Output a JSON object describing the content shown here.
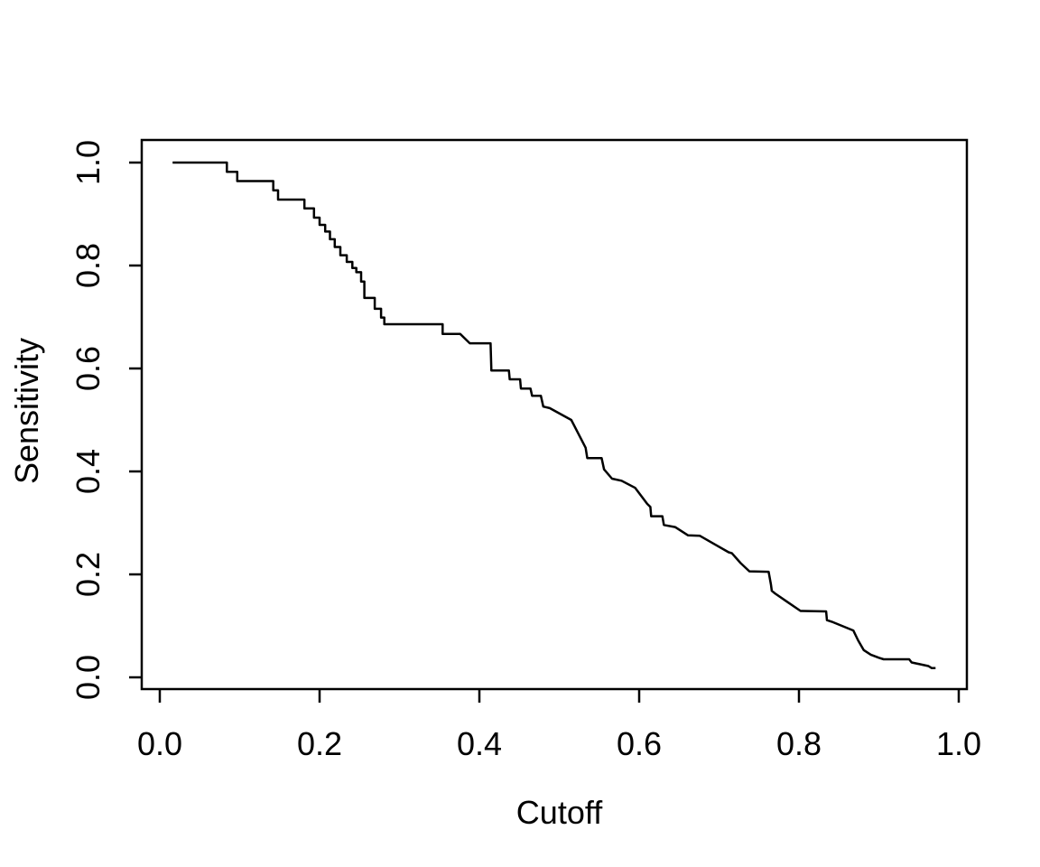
{
  "figure": {
    "background": "#FFFFFF",
    "foreground": "#000000"
  },
  "chart_data": {
    "type": "line",
    "subtype": "step-curve-r-base-plot",
    "title": "",
    "xlabel": "Cutoff",
    "ylabel": "Sensitivity",
    "xlim": [
      0.0,
      1.0
    ],
    "ylim": [
      0.0,
      1.0
    ],
    "grid": false,
    "legend_position": "none",
    "x_ticks": {
      "values": [
        0.0,
        0.2,
        0.4,
        0.6,
        0.8,
        1.0
      ],
      "labels": [
        "0.0",
        "0.2",
        "0.4",
        "0.6",
        "0.8",
        "1.0"
      ]
    },
    "y_ticks": {
      "values": [
        0.0,
        0.2,
        0.4,
        0.6,
        0.8,
        1.0
      ],
      "labels": [
        "0.0",
        "0.2",
        "0.4",
        "0.6",
        "0.8",
        "1.0"
      ]
    },
    "series": [
      {
        "name": "sensitivity-vs-cutoff",
        "color": "#000000",
        "line_width": 2.5,
        "points": [
          [
            0.016,
            1.0
          ],
          [
            0.084,
            1.0
          ],
          [
            0.084,
            0.982
          ],
          [
            0.097,
            0.982
          ],
          [
            0.097,
            0.964
          ],
          [
            0.142,
            0.964
          ],
          [
            0.142,
            0.946
          ],
          [
            0.148,
            0.946
          ],
          [
            0.148,
            0.928
          ],
          [
            0.181,
            0.928
          ],
          [
            0.181,
            0.911
          ],
          [
            0.193,
            0.911
          ],
          [
            0.193,
            0.893
          ],
          [
            0.2,
            0.893
          ],
          [
            0.2,
            0.879
          ],
          [
            0.207,
            0.879
          ],
          [
            0.207,
            0.866
          ],
          [
            0.213,
            0.866
          ],
          [
            0.213,
            0.851
          ],
          [
            0.219,
            0.851
          ],
          [
            0.219,
            0.836
          ],
          [
            0.226,
            0.836
          ],
          [
            0.226,
            0.82
          ],
          [
            0.234,
            0.82
          ],
          [
            0.234,
            0.807
          ],
          [
            0.241,
            0.807
          ],
          [
            0.241,
            0.795
          ],
          [
            0.246,
            0.795
          ],
          [
            0.246,
            0.787
          ],
          [
            0.252,
            0.787
          ],
          [
            0.252,
            0.769
          ],
          [
            0.256,
            0.769
          ],
          [
            0.256,
            0.737
          ],
          [
            0.269,
            0.737
          ],
          [
            0.269,
            0.716
          ],
          [
            0.277,
            0.716
          ],
          [
            0.277,
            0.699
          ],
          [
            0.281,
            0.699
          ],
          [
            0.281,
            0.686
          ],
          [
            0.354,
            0.686
          ],
          [
            0.354,
            0.667
          ],
          [
            0.376,
            0.667
          ],
          [
            0.388,
            0.649
          ],
          [
            0.414,
            0.649
          ],
          [
            0.415,
            0.596
          ],
          [
            0.437,
            0.596
          ],
          [
            0.438,
            0.579
          ],
          [
            0.451,
            0.579
          ],
          [
            0.452,
            0.561
          ],
          [
            0.464,
            0.561
          ],
          [
            0.466,
            0.547
          ],
          [
            0.477,
            0.547
          ],
          [
            0.48,
            0.526
          ],
          [
            0.488,
            0.523
          ],
          [
            0.515,
            0.5
          ],
          [
            0.533,
            0.446
          ],
          [
            0.535,
            0.426
          ],
          [
            0.553,
            0.426
          ],
          [
            0.556,
            0.404
          ],
          [
            0.566,
            0.386
          ],
          [
            0.578,
            0.382
          ],
          [
            0.595,
            0.368
          ],
          [
            0.61,
            0.337
          ],
          [
            0.614,
            0.331
          ],
          [
            0.615,
            0.313
          ],
          [
            0.629,
            0.313
          ],
          [
            0.631,
            0.296
          ],
          [
            0.645,
            0.292
          ],
          [
            0.661,
            0.276
          ],
          [
            0.676,
            0.275
          ],
          [
            0.695,
            0.258
          ],
          [
            0.712,
            0.243
          ],
          [
            0.716,
            0.241
          ],
          [
            0.727,
            0.222
          ],
          [
            0.738,
            0.206
          ],
          [
            0.762,
            0.205
          ],
          [
            0.765,
            0.18
          ],
          [
            0.766,
            0.168
          ],
          [
            0.77,
            0.163
          ],
          [
            0.786,
            0.146
          ],
          [
            0.802,
            0.129
          ],
          [
            0.834,
            0.128
          ],
          [
            0.835,
            0.111
          ],
          [
            0.841,
            0.108
          ],
          [
            0.868,
            0.091
          ],
          [
            0.874,
            0.072
          ],
          [
            0.881,
            0.053
          ],
          [
            0.89,
            0.044
          ],
          [
            0.9,
            0.038
          ],
          [
            0.906,
            0.035
          ],
          [
            0.938,
            0.035
          ],
          [
            0.941,
            0.029
          ],
          [
            0.962,
            0.022
          ],
          [
            0.966,
            0.018
          ],
          [
            0.971,
            0.018
          ]
        ]
      }
    ]
  }
}
